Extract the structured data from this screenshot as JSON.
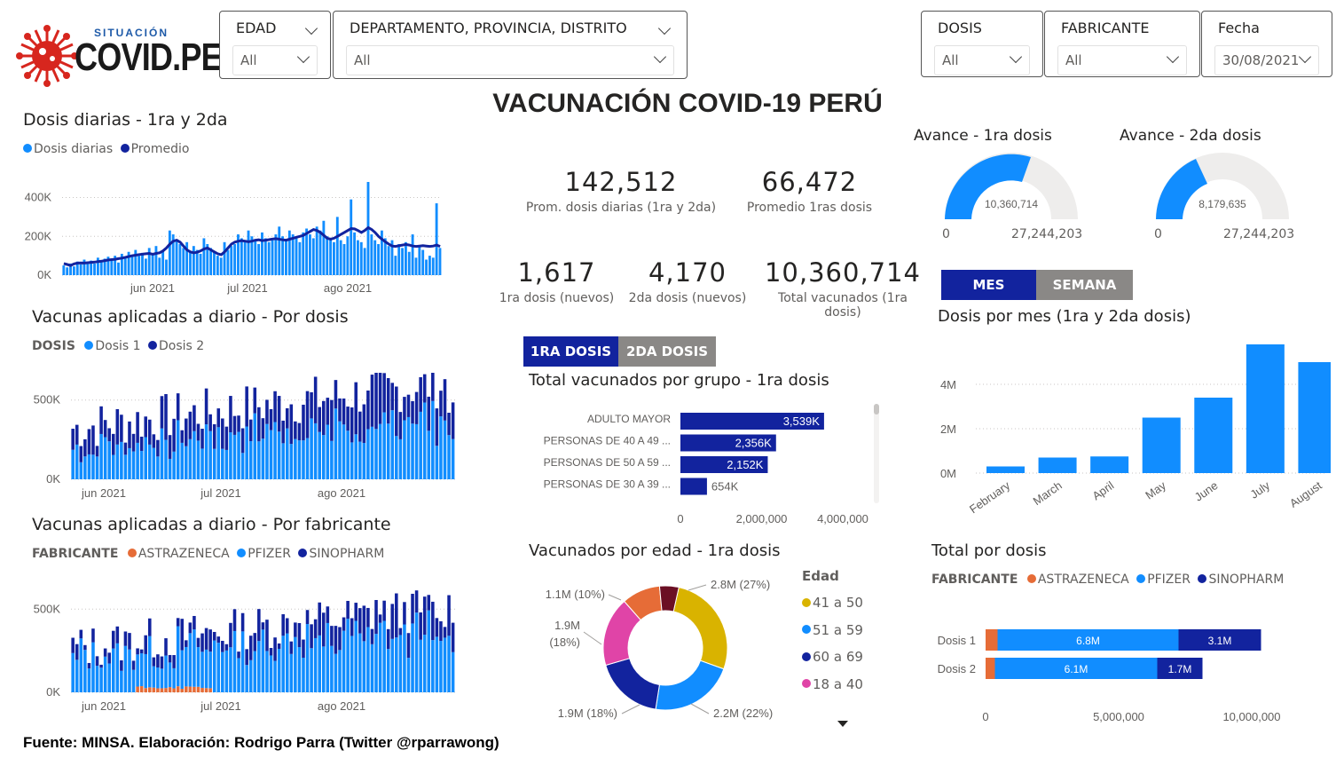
{
  "logo": {
    "sub": "SITUACIÓN",
    "main": "COVID.PE"
  },
  "filters": {
    "edad": {
      "label": "EDAD",
      "value": "All"
    },
    "region": {
      "label": "DEPARTAMENTO, PROVINCIA, DISTRITO",
      "value": "All"
    },
    "dosis": {
      "label": "DOSIS",
      "value": "All"
    },
    "fabricante": {
      "label": "FABRICANTE",
      "value": "All"
    },
    "fecha": {
      "label": "Fecha",
      "value": "30/08/2021"
    }
  },
  "main_title": "VACUNACIÓN COVID-19 PERÚ",
  "kpis": {
    "prom_diarias": {
      "value": "142,512",
      "label": "Prom. dosis diarias (1ra y 2da)"
    },
    "prom_1ras": {
      "value": "66,472",
      "label": "Promedio 1ras dosis"
    },
    "nuevos_1ra": {
      "value": "1,617",
      "label": "1ra dosis (nuevos)"
    },
    "nuevos_2da": {
      "value": "4,170",
      "label": "2da dosis (nuevos)"
    },
    "total_vacunados": {
      "value": "10,360,714",
      "label": "Total vacunados (1ra dosis)"
    }
  },
  "gauges": {
    "g1": {
      "title": "Avance - 1ra dosis",
      "value_label": "10,360,714",
      "min": "0",
      "max": "27,244,203"
    },
    "g2": {
      "title": "Avance - 2da dosis",
      "value_label": "8,179,635",
      "min": "0",
      "max": "27,244,203"
    }
  },
  "toggles": {
    "mes": "MES",
    "semana": "SEMANA",
    "dosis1": "1RA DOSIS",
    "dosis2": "2DA DOSIS"
  },
  "colors": {
    "light_blue": "#118dff",
    "dark_blue": "#12239e",
    "orange": "#e66c37",
    "yellow": "#d9b300",
    "pink": "#e044a7",
    "grey_btn": "#8a8886"
  },
  "footer": "Fuente: MINSA. Elaboración: Rodrigo Parra (Twitter @rparrawong)",
  "icons": {
    "logo_virus": "virus-icon",
    "dropdown": "chevron-down-icon",
    "scroll_down": "triangle-down-icon"
  },
  "chart_data": [
    {
      "id": "daily",
      "type": "bar",
      "title": "Dosis diarias - 1ra y 2da",
      "legend": [
        "Dosis diarias",
        "Promedio"
      ],
      "xticks": [
        "jun 2021",
        "jul 2021",
        "ago 2021"
      ],
      "yticks": [
        "0K",
        "200K",
        "400K"
      ],
      "ylim": [
        0,
        480000
      ],
      "series": [
        {
          "name": "Dosis diarias",
          "values": [
            50000,
            40000,
            60000,
            45000,
            70000,
            55000,
            80000,
            62000,
            75000,
            60000,
            90000,
            70000,
            85000,
            95000,
            78000,
            100000,
            65000,
            110000,
            90000,
            120000,
            95000,
            130000,
            100000,
            115000,
            85000,
            140000,
            110000,
            150000,
            90000,
            125000,
            80000,
            230000,
            210000,
            180000,
            160000,
            140000,
            170000,
            120000,
            150000,
            130000,
            110000,
            190000,
            160000,
            140000,
            120000,
            100000,
            90000,
            170000,
            130000,
            150000,
            160000,
            210000,
            190000,
            170000,
            230000,
            200000,
            180000,
            160000,
            220000,
            190000,
            170000,
            180000,
            210000,
            250000,
            200000,
            180000,
            230000,
            210000,
            190000,
            170000,
            220000,
            240000,
            210000,
            190000,
            250000,
            230000,
            280000,
            200000,
            190000,
            170000,
            300000,
            180000,
            160000,
            200000,
            390000,
            220000,
            180000,
            170000,
            140000,
            480000,
            210000,
            180000,
            160000,
            230000,
            190000,
            150000,
            180000,
            100000,
            160000,
            140000,
            170000,
            120000,
            210000,
            90000,
            150000,
            130000,
            80000,
            100000,
            90000,
            370000,
            140000
          ]
        },
        {
          "name": "Promedio",
          "values": [
            60000,
            55000,
            50000,
            58000,
            62000,
            63000,
            62000,
            64000,
            66000,
            67000,
            70000,
            72000,
            75000,
            78000,
            80000,
            82000,
            85000,
            88000,
            92000,
            96000,
            100000,
            103000,
            106000,
            108000,
            110000,
            112000,
            108000,
            112000,
            115000,
            125000,
            140000,
            160000,
            175000,
            180000,
            170000,
            150000,
            130000,
            120000,
            115000,
            118000,
            125000,
            135000,
            140000,
            130000,
            120000,
            110000,
            105000,
            120000,
            140000,
            160000,
            170000,
            175000,
            178000,
            175000,
            172000,
            175000,
            180000,
            182000,
            178000,
            180000,
            183000,
            186000,
            188000,
            185000,
            182000,
            180000,
            185000,
            190000,
            195000,
            200000,
            205000,
            215000,
            225000,
            235000,
            230000,
            220000,
            205000,
            190000,
            185000,
            190000,
            200000,
            210000,
            220000,
            230000,
            240000,
            238000,
            230000,
            220000,
            230000,
            245000,
            235000,
            220000,
            200000,
            185000,
            172000,
            160000,
            150000,
            148000,
            152000,
            155000,
            158000,
            155000,
            150000,
            148000,
            150000,
            152000,
            150000,
            148000,
            150000,
            155000,
            148000
          ]
        }
      ]
    },
    {
      "id": "pordosis",
      "type": "bar",
      "title": "Vacunas aplicadas a diario - Por dosis",
      "legend_title": "DOSIS",
      "legend": [
        "Dosis 1",
        "Dosis 2"
      ],
      "xticks": [
        "jun 2021",
        "jul 2021",
        "ago 2021"
      ],
      "yticks": [
        "0K",
        "500K"
      ],
      "ylim": [
        0,
        560000
      ]
    },
    {
      "id": "porfab",
      "type": "bar",
      "title": "Vacunas aplicadas a diario - Por fabricante",
      "legend_title": "FABRICANTE",
      "legend": [
        "ASTRAZENECA",
        "PFIZER",
        "SINOPHARM"
      ],
      "xticks": [
        "jun 2021",
        "jul 2021",
        "ago 2021"
      ],
      "yticks": [
        "0K",
        "500K"
      ],
      "ylim": [
        0,
        560000
      ]
    },
    {
      "id": "grupo",
      "type": "bar",
      "orientation": "horizontal",
      "title": "Total vacunados por grupo - 1ra dosis",
      "categories": [
        "ADULTO MAYOR",
        "PERSONAS DE 40 A 49 ...",
        "PERSONAS DE 50 A 59 ...",
        "PERSONAS DE 30 A 39 ..."
      ],
      "values": [
        3539000,
        2356000,
        2152000,
        654000
      ],
      "data_labels": [
        "3,539K",
        "2,356K",
        "2,152K",
        "654K"
      ],
      "xticks": [
        "0",
        "2,000,000",
        "4,000,000"
      ],
      "xlim": [
        0,
        4000000
      ]
    },
    {
      "id": "edad",
      "type": "pie",
      "title": "Vacunados por edad - 1ra dosis",
      "legend_title": "Edad",
      "legend": [
        "41 a 50",
        "51 a 59",
        "60 a 69",
        "18 a 40"
      ],
      "slices": [
        {
          "label": "2.8M (27%)",
          "value": 27
        },
        {
          "label": "2.2M (22%)",
          "value": 22
        },
        {
          "label": "1.9M (18%)",
          "value": 18
        },
        {
          "label": "1.9M (18%)",
          "value": 18
        },
        {
          "label": "1.1M (10%)",
          "value": 10
        },
        {
          "label": "",
          "value": 5
        }
      ]
    },
    {
      "id": "mes",
      "type": "bar",
      "title": "Dosis por mes (1ra y 2da dosis)",
      "categories": [
        "February",
        "March",
        "April",
        "May",
        "June",
        "July",
        "August"
      ],
      "values": [
        300000,
        700000,
        750000,
        2500000,
        3400000,
        5800000,
        5000000
      ],
      "yticks": [
        "0M",
        "2M",
        "4M"
      ],
      "ylim": [
        0,
        6000000
      ]
    },
    {
      "id": "totaldosis",
      "type": "bar",
      "orientation": "horizontal",
      "stacked": true,
      "title": "Total por dosis",
      "legend_title": "FABRICANTE",
      "legend": [
        "ASTRAZENECA",
        "PFIZER",
        "SINOPHARM"
      ],
      "categories": [
        "Dosis 1",
        "Dosis 2"
      ],
      "series": [
        {
          "name": "ASTRAZENECA",
          "values": [
            450000,
            350000
          ]
        },
        {
          "name": "PFIZER",
          "values": [
            6800000,
            6100000
          ],
          "labels": [
            "6.8M",
            "6.1M"
          ]
        },
        {
          "name": "SINOPHARM",
          "values": [
            3100000,
            1700000
          ],
          "labels": [
            "3.1M",
            "1.7M"
          ]
        }
      ],
      "xticks": [
        "0",
        "5,000,000",
        "10,000,000"
      ],
      "xlim": [
        0,
        10500000
      ]
    }
  ]
}
